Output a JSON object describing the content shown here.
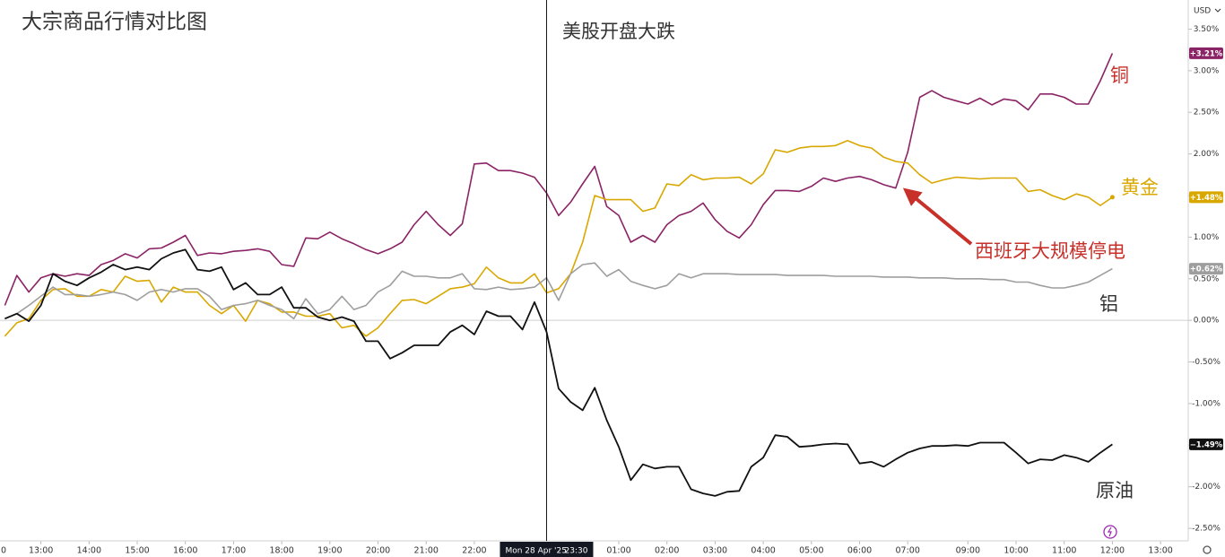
{
  "chart_data": {
    "type": "line",
    "title": "大宗商品行情对比图",
    "annotations": [
      {
        "text": "美股开盘大跌"
      },
      {
        "text": "西班牙大规模停电"
      }
    ],
    "currency": "USD",
    "x": [
      1,
      2,
      3,
      4,
      5,
      6,
      7,
      8,
      9,
      10,
      11,
      12,
      13,
      14,
      15,
      16,
      17,
      18,
      19,
      20,
      21,
      22,
      23,
      24,
      25,
      26,
      27,
      28,
      29,
      30,
      31,
      32,
      33,
      34,
      35,
      36,
      37,
      38,
      39,
      40,
      41,
      42,
      43,
      44,
      45,
      46,
      47,
      48,
      49,
      50,
      51,
      52,
      53,
      54,
      55,
      56,
      57,
      58,
      59,
      60,
      61,
      62,
      63,
      64,
      65,
      66,
      67,
      68,
      69,
      70,
      71,
      72,
      73,
      74,
      75,
      76,
      77,
      78,
      79,
      80,
      81,
      82,
      83,
      84,
      85,
      86,
      87,
      88,
      89,
      90,
      91,
      92,
      93
    ],
    "xlim": [
      0.6,
      99.3
    ],
    "xticks": [
      {
        "value": 0,
        "label": "0"
      },
      {
        "value": 4,
        "label": "13:00"
      },
      {
        "value": 8,
        "label": "14:00"
      },
      {
        "value": 12,
        "label": "15:00"
      },
      {
        "value": 16,
        "label": "16:00"
      },
      {
        "value": 20,
        "label": "17:00"
      },
      {
        "value": 24,
        "label": "18:00"
      },
      {
        "value": 28,
        "label": "19:00"
      },
      {
        "value": 32,
        "label": "20:00"
      },
      {
        "value": 36,
        "label": "21:00"
      },
      {
        "value": 40,
        "label": "22:00"
      },
      {
        "value": 52,
        "label": "01:00"
      },
      {
        "value": 56,
        "label": "02:00"
      },
      {
        "value": 60,
        "label": "03:00"
      },
      {
        "value": 64,
        "label": "04:00"
      },
      {
        "value": 68,
        "label": "05:00"
      },
      {
        "value": 72,
        "label": "06:00"
      },
      {
        "value": 76,
        "label": "07:00"
      },
      {
        "value": 81,
        "label": "09:00"
      },
      {
        "value": 85,
        "label": "10:00"
      },
      {
        "value": 89,
        "label": "11:00"
      },
      {
        "value": 93,
        "label": "12:00"
      },
      {
        "value": 97,
        "label": "13:00"
      }
    ],
    "crosshair": {
      "x": 46,
      "label": "Mon 28 Apr '25",
      "time": "23:30"
    },
    "ylim": [
      -2.65,
      3.85
    ],
    "yticks": [
      {
        "value": 3.5,
        "label": "3.50%"
      },
      {
        "value": 3,
        "label": "3.00%"
      },
      {
        "value": 2.5,
        "label": "2.50%"
      },
      {
        "value": 2,
        "label": "2.00%"
      },
      {
        "value": 1.5,
        "label": "1.50%"
      },
      {
        "value": 1,
        "label": "1.00%"
      },
      {
        "value": 0.5,
        "label": "0.50%"
      },
      {
        "value": 0,
        "label": "0.00%"
      },
      {
        "value": -0.5,
        "label": "-0.50%"
      },
      {
        "value": -1,
        "label": "-1.00%"
      },
      {
        "value": -1.5,
        "label": "-1.50%"
      },
      {
        "value": -2,
        "label": "-2.00%"
      },
      {
        "value": -2.5,
        "label": "-2.50%"
      }
    ],
    "series": [
      {
        "name": "铜",
        "color": "#8b2466",
        "label_color": "#c8302a",
        "last_label": "+3.21%",
        "values": [
          0.18,
          0.54,
          0.34,
          0.51,
          0.56,
          0.53,
          0.56,
          0.54,
          0.67,
          0.72,
          0.8,
          0.75,
          0.86,
          0.87,
          0.94,
          1.02,
          0.78,
          0.81,
          0.8,
          0.83,
          0.84,
          0.86,
          0.83,
          0.67,
          0.65,
          0.99,
          0.98,
          1.06,
          0.98,
          0.92,
          0.85,
          0.8,
          0.86,
          0.94,
          1.15,
          1.31,
          1.15,
          1.02,
          1.16,
          1.88,
          1.89,
          1.8,
          1.8,
          1.77,
          1.72,
          1.53,
          1.26,
          1.42,
          1.64,
          1.85,
          1.37,
          1.26,
          0.94,
          1.02,
          0.94,
          1.15,
          1.26,
          1.31,
          1.41,
          1.21,
          1.07,
          0.99,
          1.15,
          1.39,
          1.56,
          1.56,
          1.55,
          1.61,
          1.71,
          1.67,
          1.71,
          1.73,
          1.69,
          1.63,
          1.59,
          2.02,
          2.68,
          2.76,
          2.68,
          2.64,
          2.6,
          2.67,
          2.59,
          2.66,
          2.64,
          2.53,
          2.72,
          2.72,
          2.68,
          2.6,
          2.6,
          2.88,
          3.21
        ]
      },
      {
        "name": "黄金",
        "color": "#d9a800",
        "label_color": "#d9a800",
        "last_label": "+1.48%",
        "values": [
          -0.19,
          -0.03,
          0.02,
          0.24,
          0.37,
          0.38,
          0.29,
          0.29,
          0.37,
          0.34,
          0.53,
          0.47,
          0.48,
          0.22,
          0.4,
          0.34,
          0.34,
          0.18,
          0.08,
          0.18,
          -0.01,
          0.24,
          0.2,
          0.1,
          0.1,
          0.05,
          0.05,
          0.08,
          -0.09,
          -0.06,
          -0.19,
          -0.09,
          0.08,
          0.24,
          0.25,
          0.2,
          0.29,
          0.38,
          0.4,
          0.44,
          0.64,
          0.51,
          0.45,
          0.45,
          0.56,
          0.33,
          0.38,
          0.56,
          0.94,
          1.5,
          1.45,
          1.45,
          1.45,
          1.31,
          1.35,
          1.64,
          1.62,
          1.75,
          1.69,
          1.71,
          1.71,
          1.72,
          1.64,
          1.76,
          2.05,
          2.02,
          2.07,
          2.09,
          2.09,
          2.1,
          2.16,
          2.1,
          2.07,
          1.96,
          1.91,
          1.89,
          1.75,
          1.65,
          1.69,
          1.72,
          1.71,
          1.7,
          1.71,
          1.71,
          1.71,
          1.55,
          1.57,
          1.5,
          1.45,
          1.52,
          1.48,
          1.38,
          1.48
        ]
      },
      {
        "name": "铝",
        "color": "#9e9e9e",
        "label_color": "#333333",
        "last_label": "+0.62%",
        "values": [
          0.02,
          0.08,
          0.18,
          0.29,
          0.4,
          0.31,
          0.31,
          0.29,
          0.31,
          0.34,
          0.31,
          0.24,
          0.34,
          0.37,
          0.34,
          0.38,
          0.38,
          0.29,
          0.13,
          0.18,
          0.2,
          0.24,
          0.18,
          0.13,
          0.02,
          0.26,
          0.08,
          0.13,
          0.29,
          0.13,
          0.18,
          0.34,
          0.42,
          0.59,
          0.53,
          0.53,
          0.51,
          0.51,
          0.56,
          0.38,
          0.37,
          0.4,
          0.37,
          0.38,
          0.4,
          0.51,
          0.24,
          0.56,
          0.67,
          0.69,
          0.53,
          0.61,
          0.47,
          0.42,
          0.38,
          0.42,
          0.56,
          0.51,
          0.56,
          0.56,
          0.56,
          0.55,
          0.55,
          0.55,
          0.55,
          0.54,
          0.54,
          0.54,
          0.54,
          0.53,
          0.53,
          0.53,
          0.53,
          0.52,
          0.52,
          0.52,
          0.51,
          0.51,
          0.51,
          0.5,
          0.5,
          0.5,
          0.49,
          0.49,
          0.46,
          0.46,
          0.42,
          0.39,
          0.39,
          0.42,
          0.46,
          0.54,
          0.62
        ]
      },
      {
        "name": "原油",
        "color": "#111111",
        "label_color": "#333333",
        "last_label": "−1.49%",
        "values": [
          0.02,
          0.08,
          -0.01,
          0.18,
          0.56,
          0.47,
          0.42,
          0.51,
          0.58,
          0.67,
          0.61,
          0.64,
          0.61,
          0.74,
          0.81,
          0.85,
          0.61,
          0.59,
          0.64,
          0.37,
          0.45,
          0.31,
          0.31,
          0.4,
          0.15,
          0.15,
          0.04,
          0.0,
          0.04,
          -0.01,
          -0.25,
          -0.25,
          -0.46,
          -0.39,
          -0.3,
          -0.3,
          -0.3,
          -0.14,
          -0.06,
          -0.17,
          0.11,
          0.05,
          0.05,
          -0.11,
          0.22,
          -0.14,
          -0.82,
          -0.98,
          -1.08,
          -0.81,
          -1.2,
          -1.52,
          -1.92,
          -1.73,
          -1.78,
          -1.76,
          -1.76,
          -2.03,
          -2.08,
          -2.11,
          -2.06,
          -2.05,
          -1.76,
          -1.65,
          -1.38,
          -1.4,
          -1.52,
          -1.51,
          -1.49,
          -1.48,
          -1.49,
          -1.72,
          -1.7,
          -1.76,
          -1.67,
          -1.59,
          -1.54,
          -1.51,
          -1.51,
          -1.5,
          -1.51,
          -1.47,
          -1.47,
          -1.47,
          -1.59,
          -1.72,
          -1.67,
          -1.68,
          -1.62,
          -1.65,
          -1.7,
          -1.59,
          -1.49
        ]
      }
    ]
  }
}
